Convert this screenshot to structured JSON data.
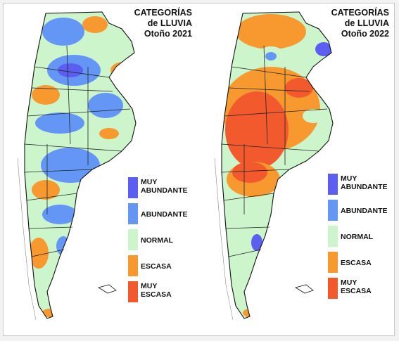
{
  "maps": [
    {
      "title_line1": "CATEGORÍAS",
      "title_line2": "de LLUVIA",
      "title_line3": "Otoño 2021"
    },
    {
      "title_line1": "CATEGORÍAS",
      "title_line2": "de LLUVIA",
      "title_line3": "Otoño 2022"
    }
  ],
  "legend": [
    {
      "label": "MUY\nABUNDANTE",
      "color": "#5b5ef0"
    },
    {
      "label": "ABUNDANTE",
      "color": "#6496f5"
    },
    {
      "label": "NORMAL",
      "color": "#ccf5cc"
    },
    {
      "label": "ESCASA",
      "color": "#f7992e"
    },
    {
      "label": "MUY\nESCASA",
      "color": "#f25a2e"
    }
  ]
}
